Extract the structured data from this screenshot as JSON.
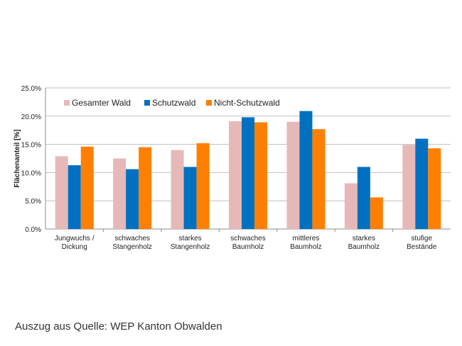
{
  "caption": "Auszug aus Quelle: WEP Kanton Obwalden",
  "chart_data": {
    "type": "bar",
    "title": "",
    "xlabel": "",
    "ylabel": "Flächenanteil [%]",
    "ylim": [
      0,
      25
    ],
    "y_ticks": [
      "0.0%",
      "5.0%",
      "10.0%",
      "15.0%",
      "20.0%",
      "25.0%"
    ],
    "grid": true,
    "legend_position": "top-left",
    "categories": [
      [
        "Jungwuchs /",
        "Dickung"
      ],
      [
        "schwaches",
        "Stangenholz"
      ],
      [
        "starkes",
        "Stangenholz"
      ],
      [
        "schwaches",
        "Baumholz"
      ],
      [
        "mittleres",
        "Baumholz"
      ],
      [
        "starkes",
        "Baumholz"
      ],
      [
        "stufige",
        "Bestände"
      ]
    ],
    "series": [
      {
        "name": "Gesamter Wald",
        "color": "#e6b9b8",
        "values": [
          12.9,
          12.5,
          14.0,
          19.1,
          19.0,
          8.1,
          14.9
        ]
      },
      {
        "name": "Schutzwald",
        "color": "#0070c0",
        "values": [
          11.3,
          10.6,
          11.0,
          19.8,
          20.9,
          11.0,
          16.0
        ]
      },
      {
        "name": "Nicht-Schutzwald",
        "color": "#ff8000",
        "values": [
          14.6,
          14.5,
          15.2,
          18.9,
          17.7,
          5.6,
          14.3
        ]
      }
    ]
  }
}
